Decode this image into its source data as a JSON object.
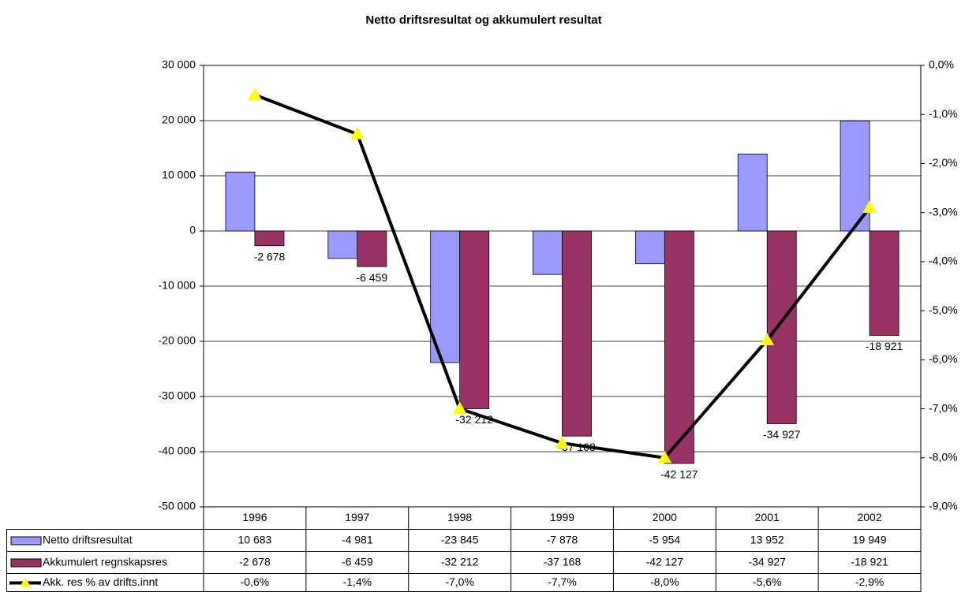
{
  "chart_data": {
    "type": "bar",
    "title": "Netto driftsresultat og akkumulert resultat",
    "categories": [
      "1996",
      "1997",
      "1998",
      "1999",
      "2000",
      "2001",
      "2002"
    ],
    "ylim": [
      -50000,
      30000
    ],
    "yticks": [
      {
        "value": -50000,
        "label": "-50 000"
      },
      {
        "value": -40000,
        "label": "-40 000"
      },
      {
        "value": -30000,
        "label": "-30 000"
      },
      {
        "value": -20000,
        "label": "-20 000"
      },
      {
        "value": -10000,
        "label": "-10 000"
      },
      0,
      {
        "value": 10000,
        "label": "10 000"
      },
      {
        "value": 20000,
        "label": "20 000"
      },
      {
        "value": 30000,
        "label": "30 000"
      }
    ],
    "y2lim": [
      -9,
      0
    ],
    "y2ticks": [
      {
        "value": -9,
        "label": "-9,0%"
      },
      {
        "value": -8,
        "label": "-8,0%"
      },
      {
        "value": -7,
        "label": "-7,0%"
      },
      {
        "value": -6,
        "label": "-6,0%"
      },
      {
        "value": -5,
        "label": "-5,0%"
      },
      {
        "value": -4,
        "label": "-4,0%"
      },
      {
        "value": -3,
        "label": "-3,0%"
      },
      {
        "value": -2,
        "label": "-2,0%"
      },
      {
        "value": -1,
        "label": "-1,0%"
      },
      {
        "value": 0,
        "label": "0,0%"
      }
    ],
    "grid": true,
    "series": [
      {
        "name": "Netto driftsresultat",
        "color": "#9999ff",
        "values": [
          10683,
          -4981,
          -23845,
          -7878,
          -5954,
          13952,
          19949
        ],
        "value_labels": [
          "10 683",
          "-4 981",
          "-23 845",
          "-7 878",
          "-5 954",
          "13 952",
          "19 949"
        ]
      },
      {
        "name": "Akkumulert regnskapsres",
        "color": "#993366",
        "values": [
          -2678,
          -6459,
          -32212,
          -37168,
          -42127,
          -34927,
          -18921
        ],
        "value_labels": [
          "-2 678",
          "-6 459",
          "-32 212",
          "-37 168",
          "-42 127",
          "-34 927",
          "-18 921"
        ]
      },
      {
        "name": "Akk. res % av drifts.innt",
        "color": "#000000",
        "marker_color": "#ffff00",
        "type": "line",
        "axis": "y2",
        "values": [
          -0.6,
          -1.4,
          -7.0,
          -7.7,
          -8.0,
          -5.6,
          -2.9
        ],
        "value_labels": [
          "-0,6%",
          "-1,4%",
          "-7,0%",
          "-7,7%",
          "-8,0%",
          "-5,6%",
          "-2,9%"
        ]
      }
    ]
  }
}
